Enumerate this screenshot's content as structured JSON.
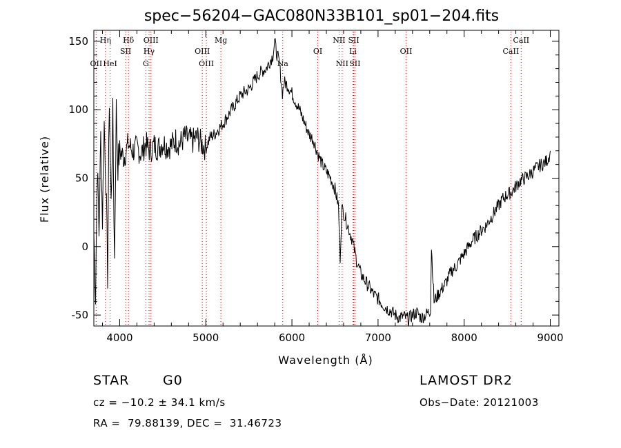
{
  "chart_data": {
    "type": "line",
    "title": "spec−56204−GAC080N33B101_sp01−204.fits",
    "xlabel": "Wavelength (Å)",
    "ylabel": "Flux (relative)",
    "xlim": [
      3700,
      9100
    ],
    "ylim": [
      -58,
      158
    ],
    "xticks": [
      4000,
      5000,
      6000,
      7000,
      8000,
      9000
    ],
    "yticks": [
      -50,
      0,
      50,
      100,
      150
    ],
    "grid": false,
    "series": [
      {
        "x": [
          3700,
          3720,
          3740,
          3760,
          3780,
          3800,
          3820,
          3840,
          3860,
          3880,
          3900,
          3920,
          3940,
          3960,
          3980,
          4000,
          4050,
          4100,
          4150,
          4200,
          4250,
          4300,
          4350,
          4400,
          4450,
          4500,
          4550,
          4600,
          4650,
          4700,
          4750,
          4800,
          4850,
          4900,
          4950,
          5000,
          5050,
          5100,
          5150,
          5200,
          5250,
          5300,
          5350,
          5400,
          5450,
          5500,
          5550,
          5600,
          5650,
          5700,
          5750,
          5780,
          5800,
          5820,
          5850,
          5870,
          5890,
          5910,
          5950,
          6000,
          6050,
          6100,
          6150,
          6200,
          6250,
          6300,
          6350,
          6400,
          6450,
          6500,
          6540,
          6560,
          6580,
          6600,
          6650,
          6700,
          6750,
          6800,
          6850,
          6900,
          6950,
          7000,
          7050,
          7100,
          7150,
          7200,
          7250,
          7300,
          7350,
          7400,
          7450,
          7500,
          7550,
          7600,
          7610,
          7620,
          7650,
          7700,
          7750,
          7800,
          7850,
          7900,
          7950,
          8000,
          8050,
          8100,
          8150,
          8200,
          8250,
          8300,
          8350,
          8400,
          8450,
          8500,
          8550,
          8600,
          8650,
          8700,
          8750,
          8800,
          8850,
          8900,
          8950,
          8980,
          9000
        ],
        "y": [
          10,
          -35,
          60,
          10,
          80,
          20,
          90,
          50,
          -20,
          110,
          30,
          95,
          -10,
          100,
          60,
          70,
          65,
          75,
          70,
          72,
          68,
          75,
          70,
          74,
          72,
          76,
          73,
          74,
          78,
          75,
          80,
          78,
          77,
          80,
          75,
          72,
          80,
          82,
          86,
          90,
          95,
          100,
          105,
          110,
          113,
          115,
          120,
          125,
          128,
          130,
          136,
          140,
          150,
          142,
          135,
          125,
          112,
          120,
          118,
          112,
          105,
          98,
          90,
          82,
          78,
          68,
          60,
          55,
          50,
          42,
          30,
          -8,
          28,
          25,
          15,
          5,
          -10,
          -20,
          -25,
          -30,
          -35,
          -38,
          -42,
          -45,
          -47,
          -50,
          -52,
          -51,
          -53,
          -50,
          -48,
          -52,
          -50,
          -47,
          -45,
          0,
          -40,
          -35,
          -30,
          -25,
          -18,
          -15,
          -10,
          -5,
          0,
          5,
          8,
          12,
          15,
          20,
          25,
          30,
          35,
          38,
          40,
          44,
          48,
          50,
          52,
          55,
          58,
          60,
          62,
          65,
          70
        ]
      }
    ],
    "lines": {
      "top": [
        {
          "label": "Hη",
          "x": 3835
        },
        {
          "label": "Hδ",
          "x": 4102
        },
        {
          "label": "OIII",
          "x": 4363
        },
        {
          "label": "Mg",
          "x": 5175
        },
        {
          "label": "NII",
          "x": 6548
        },
        {
          "label": "SII",
          "x": 6717
        },
        {
          "label": "CaII",
          "x": 8662
        }
      ],
      "middle": [
        {
          "label": "SII",
          "x": 4069
        },
        {
          "label": "Hγ",
          "x": 4341
        },
        {
          "label": "OIII",
          "x": 4959
        },
        {
          "label": "OI",
          "x": 6300
        },
        {
          "label": "Li",
          "x": 6708
        },
        {
          "label": "OII",
          "x": 7325
        },
        {
          "label": "CaII",
          "x": 8542
        }
      ],
      "bottom": [
        {
          "label": "OII",
          "x": 3727
        },
        {
          "label": "HeI",
          "x": 3889
        },
        {
          "label": "G",
          "x": 4304
        },
        {
          "label": "OIII",
          "x": 5007
        },
        {
          "label": "Na",
          "x": 5893
        },
        {
          "label": "NII",
          "x": 6583
        },
        {
          "label": "SII",
          "x": 6731
        }
      ]
    }
  },
  "info": {
    "class": "STAR",
    "subclass": "G0",
    "survey": "LAMOST DR2",
    "cz": "cz = −10.2 ± 34.1 km/s",
    "obs_date": "Obs−Date: 20121003",
    "radec": "RA =  79.88139, DEC =  31.46723"
  },
  "colors": {
    "spectrum": "#000000",
    "line_markers": "#cc0000"
  }
}
